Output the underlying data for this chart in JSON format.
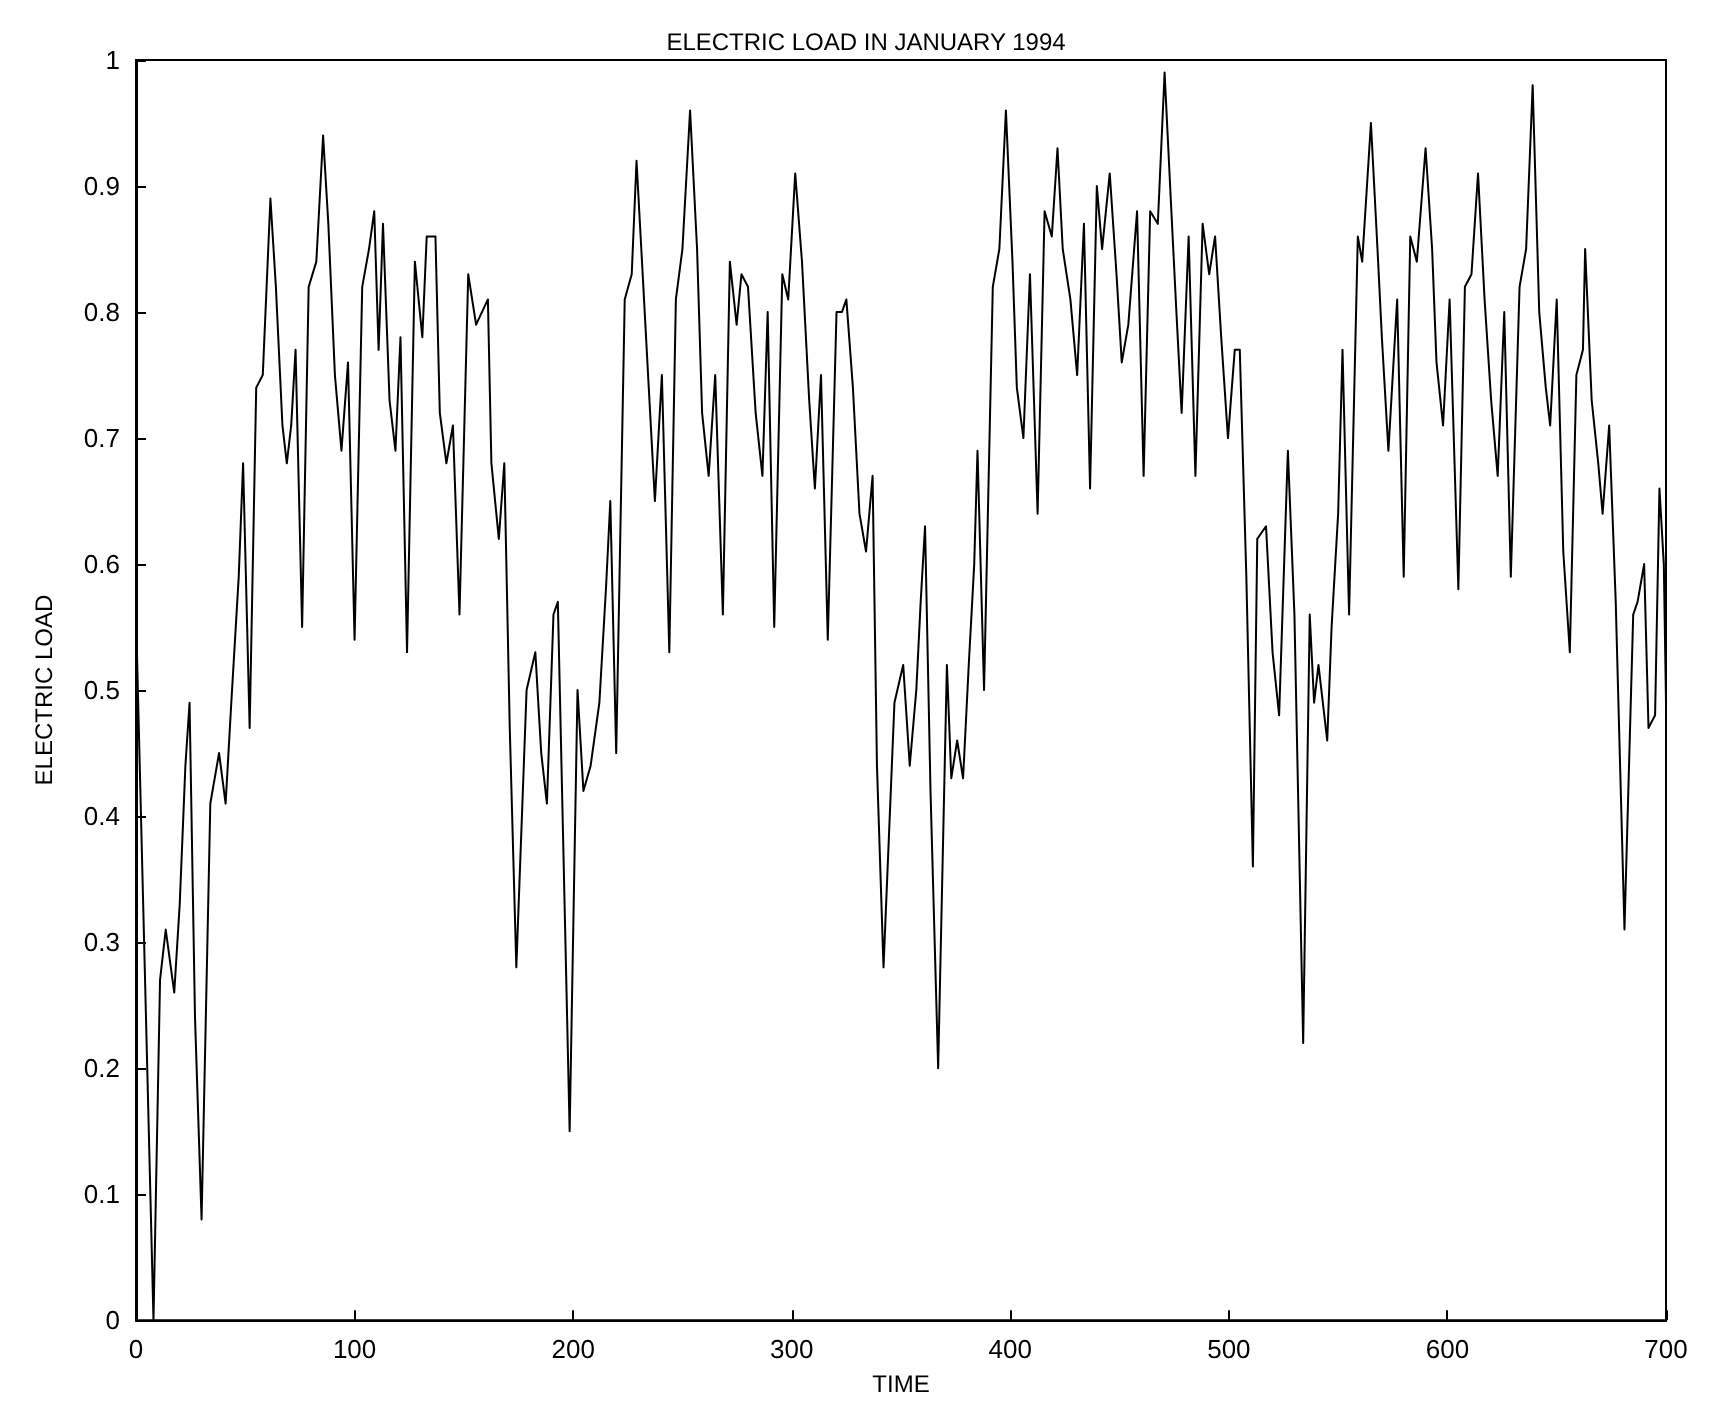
{
  "chart_data": {
    "type": "line",
    "title": "ELECTRIC LOAD IN JANUARY 1994",
    "xlabel": "TIME",
    "ylabel": "ELECTRIC LOAD",
    "xlim": [
      0,
      700
    ],
    "xticks": [
      0,
      100,
      200,
      300,
      400,
      500,
      600,
      700
    ],
    "ylim": [
      0,
      1
    ],
    "yticks": [
      0,
      0.1,
      0.2,
      0.3,
      0.4,
      0.5,
      0.6,
      0.7,
      0.8,
      0.9,
      1
    ],
    "series": [
      {
        "color": "#000000",
        "x": [
          0,
          4,
          8,
          11,
          13.6,
          17.5,
          20,
          22.6,
          24.5,
          27,
          30,
          34,
          38,
          41,
          43.6,
          47,
          49,
          52,
          55,
          58,
          61.5,
          64,
          67,
          69,
          71,
          73,
          76,
          79,
          82.5,
          85.6,
          88,
          91,
          94,
          97,
          100,
          103.5,
          106.6,
          109,
          111,
          113,
          116,
          118.7,
          121,
          124,
          127.6,
          131,
          133,
          137,
          139,
          142,
          145,
          148,
          152,
          155.6,
          161,
          162.6,
          166,
          168.5,
          171,
          174,
          178.7,
          182.7,
          185.4,
          188,
          191,
          193,
          198.4,
          202,
          204.7,
          208,
          212,
          215,
          217,
          219.7,
          223.6,
          226.8,
          229,
          231.5,
          234.6,
          237.4,
          240.6,
          244,
          247,
          250,
          253.5,
          256.7,
          259,
          262,
          265,
          268.5,
          271.7,
          274.8,
          277,
          280,
          283.5,
          286.6,
          289,
          292,
          295.7,
          298.4,
          301.6,
          304.7,
          308,
          310.6,
          313.4,
          316.5,
          320.5,
          323,
          325,
          328,
          331,
          334,
          337,
          339,
          342,
          347,
          351,
          354,
          357,
          359,
          361,
          363.5,
          367,
          371,
          373,
          375.7,
          378.4,
          381,
          383.5,
          385,
          388,
          392,
          395,
          398,
          401,
          403,
          406,
          409,
          412.5,
          415.7,
          419,
          421.6,
          424,
          427.5,
          430.6,
          433.7,
          436.5,
          439.6,
          442,
          445.5,
          448.6,
          451,
          454,
          458,
          461,
          464,
          467.5,
          470.6,
          473.7,
          476,
          478.4,
          481.6,
          484.7,
          488,
          491,
          493.7,
          496.5,
          499.6,
          502.7,
          505,
          508,
          511,
          513,
          517,
          520,
          523,
          527,
          530,
          534,
          537,
          539,
          541,
          545,
          547,
          550,
          552,
          555,
          559,
          561,
          565,
          568,
          570,
          573,
          577,
          580,
          583,
          586,
          590,
          593,
          595,
          598,
          601,
          605,
          608,
          611,
          614,
          617,
          620,
          623,
          626,
          629,
          633,
          636,
          639,
          642,
          645,
          647,
          650,
          653,
          656,
          659,
          662,
          663,
          666,
          669,
          671,
          674,
          677,
          681,
          685,
          687,
          690,
          692,
          695,
          697,
          699,
          700
        ],
        "values": [
          0.56,
          0.28,
          0.0,
          0.27,
          0.31,
          0.26,
          0.33,
          0.44,
          0.49,
          0.24,
          0.08,
          0.41,
          0.45,
          0.41,
          0.49,
          0.59,
          0.68,
          0.47,
          0.74,
          0.75,
          0.89,
          0.82,
          0.71,
          0.68,
          0.71,
          0.77,
          0.55,
          0.82,
          0.84,
          0.94,
          0.87,
          0.75,
          0.69,
          0.76,
          0.54,
          0.82,
          0.85,
          0.88,
          0.77,
          0.87,
          0.73,
          0.69,
          0.78,
          0.53,
          0.84,
          0.78,
          0.86,
          0.86,
          0.72,
          0.68,
          0.71,
          0.56,
          0.83,
          0.79,
          0.81,
          0.68,
          0.62,
          0.68,
          0.47,
          0.28,
          0.5,
          0.53,
          0.45,
          0.41,
          0.56,
          0.57,
          0.15,
          0.5,
          0.42,
          0.44,
          0.49,
          0.58,
          0.65,
          0.45,
          0.81,
          0.83,
          0.92,
          0.84,
          0.74,
          0.65,
          0.75,
          0.53,
          0.81,
          0.85,
          0.96,
          0.85,
          0.72,
          0.67,
          0.75,
          0.56,
          0.84,
          0.79,
          0.83,
          0.82,
          0.72,
          0.67,
          0.8,
          0.55,
          0.83,
          0.81,
          0.91,
          0.84,
          0.73,
          0.66,
          0.75,
          0.54,
          0.8,
          0.8,
          0.81,
          0.74,
          0.64,
          0.61,
          0.67,
          0.44,
          0.28,
          0.49,
          0.52,
          0.44,
          0.5,
          0.57,
          0.63,
          0.42,
          0.2,
          0.52,
          0.43,
          0.46,
          0.43,
          0.52,
          0.6,
          0.69,
          0.5,
          0.82,
          0.85,
          0.96,
          0.84,
          0.74,
          0.7,
          0.83,
          0.64,
          0.88,
          0.86,
          0.93,
          0.85,
          0.81,
          0.75,
          0.87,
          0.66,
          0.9,
          0.85,
          0.91,
          0.83,
          0.76,
          0.79,
          0.88,
          0.67,
          0.88,
          0.87,
          0.99,
          0.88,
          0.8,
          0.72,
          0.86,
          0.67,
          0.87,
          0.83,
          0.86,
          0.78,
          0.7,
          0.77,
          0.77,
          0.59,
          0.36,
          0.62,
          0.63,
          0.53,
          0.48,
          0.69,
          0.56,
          0.22,
          0.56,
          0.49,
          0.52,
          0.46,
          0.55,
          0.64,
          0.77,
          0.56,
          0.86,
          0.84,
          0.95,
          0.85,
          0.78,
          0.69,
          0.81,
          0.59,
          0.86,
          0.84,
          0.93,
          0.85,
          0.76,
          0.71,
          0.81,
          0.58,
          0.82,
          0.83,
          0.91,
          0.81,
          0.73,
          0.67,
          0.8,
          0.59,
          0.82,
          0.85,
          0.98,
          0.8,
          0.74,
          0.71,
          0.81,
          0.61,
          0.53,
          0.75,
          0.77,
          0.85,
          0.73,
          0.68,
          0.64,
          0.71,
          0.57,
          0.31,
          0.56,
          0.57,
          0.6,
          0.47,
          0.48,
          0.66,
          0.6,
          0.49
        ]
      }
    ]
  }
}
